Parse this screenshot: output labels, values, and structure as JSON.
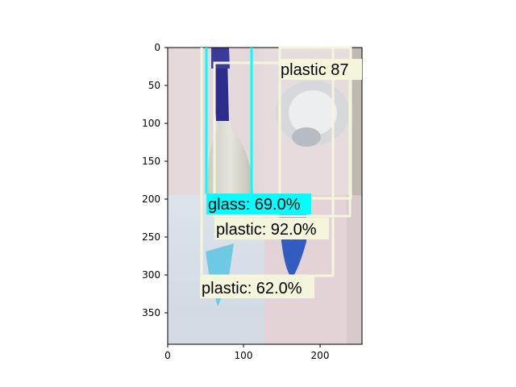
{
  "figure": {
    "x_ticks": [
      "0",
      "100",
      "200"
    ],
    "y_ticks": [
      "0",
      "50",
      "100",
      "150",
      "200",
      "250",
      "300",
      "350"
    ]
  },
  "image": {
    "description_tiles": [
      "bottle-blue-cap",
      "clear-plastic-cup",
      "blue-plastic-bag",
      "blue-plastic-bottle"
    ]
  },
  "detections": [
    {
      "label": "plastic  87",
      "class": "plastic",
      "color": "#f5f5dc"
    },
    {
      "label": "glass: 69.0%",
      "class": "glass",
      "color": "#00ffff"
    },
    {
      "label": "plastic: 92.0%",
      "class": "plastic",
      "color": "#f5f5dc"
    },
    {
      "label": "plastic: 62.0%",
      "class": "plastic",
      "color": "#f5f5dc"
    }
  ]
}
